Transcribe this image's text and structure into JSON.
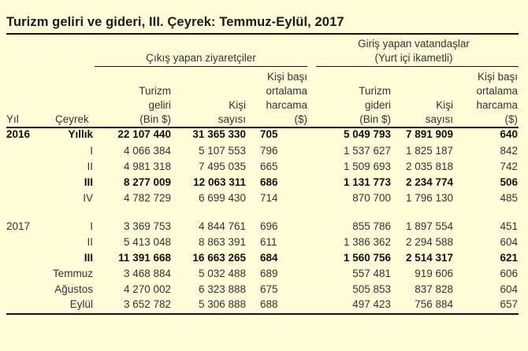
{
  "title": "Turizm geliri ve gideri, III. Çeyrek: Temmuz-Eylül, 2017",
  "header": {
    "group_outbound": "Çıkış yapan ziyaretçiler",
    "group_inbound_line1": "Giriş yapan vatandaşlar",
    "group_inbound_line2": "(Yurt içi ikametli)",
    "col_year": "Yıl",
    "col_quarter": "Çeyrek",
    "col_out_income": [
      "Turizm",
      "geliri",
      "(Bin $)"
    ],
    "col_out_persons": [
      "Kişi",
      "sayısı"
    ],
    "col_out_avg": [
      "Kişi başı",
      "ortalama",
      "harcama",
      "($)"
    ],
    "col_in_expense": [
      "Turizm",
      "gideri",
      "(Bin $)"
    ],
    "col_in_persons": [
      "Kişi",
      "sayısı"
    ],
    "col_in_avg": [
      "Kişi başı",
      "ortalama",
      "harcama",
      "($)"
    ]
  },
  "rows": [
    {
      "year": "2016",
      "period": "Yıllık",
      "out_income": "22 107 440",
      "out_persons": "31 365 330",
      "out_avg": "705",
      "in_expense": "5 049 793",
      "in_persons": "7 891 909",
      "in_avg": "640",
      "bold": true
    },
    {
      "year": "",
      "period": "I",
      "out_income": "4 066 384",
      "out_persons": "5 107 553",
      "out_avg": "796",
      "in_expense": "1 537 627",
      "in_persons": "1 825 187",
      "in_avg": "842",
      "bold": false
    },
    {
      "year": "",
      "period": "II",
      "out_income": "4 981 318",
      "out_persons": "7 495 035",
      "out_avg": "665",
      "in_expense": "1 509 693",
      "in_persons": "2 035 818",
      "in_avg": "742",
      "bold": false
    },
    {
      "year": "",
      "period": "III",
      "out_income": "8 277 009",
      "out_persons": "12 063 311",
      "out_avg": "686",
      "in_expense": "1 131 773",
      "in_persons": "2 234 774",
      "in_avg": "506",
      "bold": true
    },
    {
      "year": "",
      "period": "IV",
      "out_income": "4 782 729",
      "out_persons": "6 699 430",
      "out_avg": "714",
      "in_expense": "870 700",
      "in_persons": "1 796 130",
      "in_avg": "485",
      "bold": false
    },
    {
      "year": "2017",
      "period": "I",
      "out_income": "3 369 753",
      "out_persons": "4 844 761",
      "out_avg": "696",
      "in_expense": "855 786",
      "in_persons": "1 897 554",
      "in_avg": "451",
      "bold": false
    },
    {
      "year": "",
      "period": "II",
      "out_income": "5 413 048",
      "out_persons": "8 863 391",
      "out_avg": "611",
      "in_expense": "1 386 362",
      "in_persons": "2 294 588",
      "in_avg": "604",
      "bold": false
    },
    {
      "year": "",
      "period": "III",
      "out_income": "11 391 668",
      "out_persons": "16 663 265",
      "out_avg": "684",
      "in_expense": "1 560 756",
      "in_persons": "2 514 317",
      "in_avg": "621",
      "bold": true
    },
    {
      "year": "",
      "period": "Temmuz",
      "out_income": "3 468 884",
      "out_persons": "5 032 488",
      "out_avg": "689",
      "in_expense": "557 481",
      "in_persons": "919 606",
      "in_avg": "606",
      "bold": false
    },
    {
      "year": "",
      "period": "Ağustos",
      "out_income": "4 270 002",
      "out_persons": "6 323 888",
      "out_avg": "675",
      "in_expense": "505 853",
      "in_persons": "837 828",
      "in_avg": "604",
      "bold": false
    },
    {
      "year": "",
      "period": "Eylül",
      "out_income": "3 652 782",
      "out_persons": "5 306 888",
      "out_avg": "688",
      "in_expense": "497 423",
      "in_persons": "756 884",
      "in_avg": "657",
      "bold": false
    }
  ]
}
